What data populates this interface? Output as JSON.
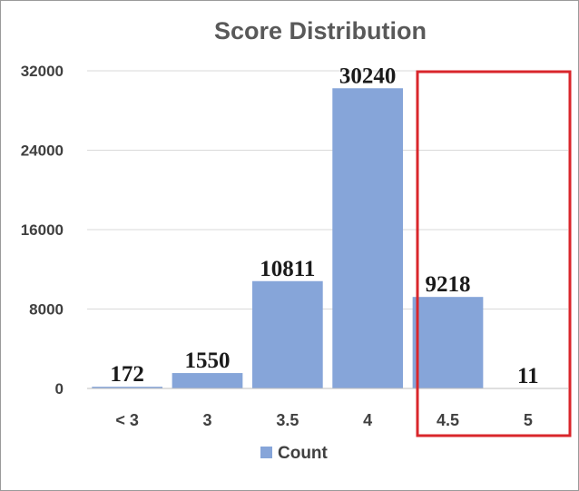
{
  "chart_data": {
    "type": "bar",
    "title": "Score Distribution",
    "categories": [
      "< 3",
      "3",
      "3.5",
      "4",
      "4.5",
      "5"
    ],
    "series": [
      {
        "name": "Count",
        "values": [
          172,
          1550,
          10811,
          30240,
          9218,
          11
        ]
      }
    ],
    "yticks": [
      "0",
      "8000",
      "16000",
      "24000",
      "32000"
    ],
    "ylim": [
      0,
      32000
    ],
    "grid": true,
    "legend": "bottom",
    "highlight": {
      "categories": [
        "4.5",
        "5"
      ],
      "color": "#d9262b"
    },
    "colors": {
      "bar": "#86a5d9"
    }
  }
}
